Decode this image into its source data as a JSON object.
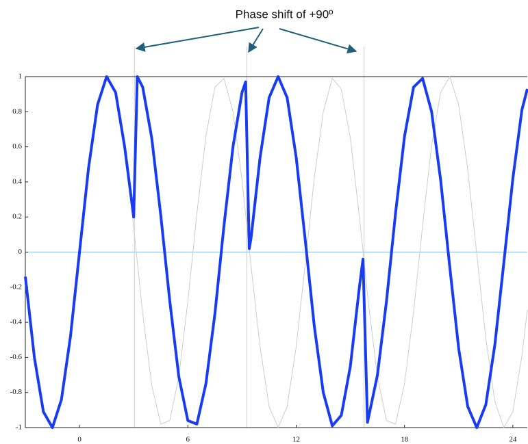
{
  "chart_data": {
    "type": "line",
    "annotation": "Phase shift of +90º",
    "xlim": [
      -3,
      24.8
    ],
    "ylim": [
      -1,
      1
    ],
    "xticks": [
      0,
      6,
      12,
      18,
      24
    ],
    "yticks": [
      -1,
      -0.8,
      -0.6,
      -0.4,
      -0.2,
      0,
      0.2,
      0.4,
      0.6,
      0.8,
      1
    ],
    "phase_shifts": [
      3.04,
      9.27,
      15.76
    ],
    "series": [
      {
        "color": "#cccccc",
        "x": [
          -3,
          -2.5,
          -2,
          -1.5,
          -1,
          -0.5,
          0,
          0.5,
          1,
          1.5,
          2,
          2.5,
          3,
          3.5,
          4,
          4.5,
          5,
          5.5,
          6,
          6.5,
          7,
          7.5,
          8,
          8.5,
          9,
          9.5,
          10,
          10.5,
          11,
          11.5,
          12,
          12.5,
          13,
          13.5,
          14,
          14.5,
          15,
          15.5,
          16,
          16.5,
          17,
          17.5,
          18,
          18.5,
          19,
          19.5,
          20,
          20.5,
          21,
          21.5,
          22,
          22.5,
          23,
          23.5,
          24,
          24.5,
          24.8
        ],
        "values": [
          -0.14,
          -0.6,
          -0.91,
          -1,
          -0.84,
          -0.48,
          0,
          0.48,
          0.84,
          1,
          0.91,
          0.6,
          0.14,
          -0.35,
          -0.76,
          -0.98,
          -0.96,
          -0.71,
          -0.28,
          0.22,
          0.66,
          0.94,
          0.99,
          0.8,
          0.41,
          -0.08,
          -0.54,
          -0.88,
          -1,
          -0.88,
          -0.54,
          -0.07,
          0.42,
          0.8,
          0.99,
          0.93,
          0.65,
          0.2,
          -0.29,
          -0.71,
          -0.96,
          -0.98,
          -0.75,
          -0.34,
          0.15,
          0.61,
          0.91,
          1,
          0.84,
          0.47,
          -0.01,
          -0.49,
          -0.85,
          -1,
          -0.91,
          -0.59,
          -0.33
        ]
      },
      {
        "color": "#1a3cf0",
        "x": [
          -3,
          -2.5,
          -2,
          -1.5,
          -1,
          -0.5,
          0,
          0.5,
          1,
          1.5,
          2,
          2.5,
          3,
          3.2,
          3.5,
          4,
          4.5,
          5,
          5.5,
          6,
          6.5,
          7,
          7.5,
          8,
          8.5,
          9,
          9.2,
          9.4,
          9.5,
          10,
          10.5,
          11,
          11.5,
          12,
          12.5,
          13,
          13.5,
          14,
          14.5,
          15,
          15.5,
          15.7,
          15.95,
          16.5,
          17,
          17.5,
          18,
          18.5,
          19,
          19.5,
          20,
          20.5,
          21,
          21.5,
          22,
          22.5,
          23,
          23.5,
          24,
          24.5,
          24.8
        ],
        "values": [
          -0.14,
          -0.6,
          -0.91,
          -1,
          -0.84,
          -0.48,
          0,
          0.48,
          0.84,
          1,
          0.91,
          0.6,
          0.2,
          1,
          0.94,
          0.65,
          0.21,
          -0.28,
          -0.71,
          -0.96,
          -0.98,
          -0.75,
          -0.35,
          0.15,
          0.6,
          0.91,
          0.97,
          0.02,
          0.08,
          0.54,
          0.88,
          1,
          0.88,
          0.54,
          0.07,
          -0.42,
          -0.8,
          -0.99,
          -0.93,
          -0.65,
          -0.2,
          -0.04,
          -0.97,
          -0.7,
          -0.28,
          0.22,
          0.66,
          0.94,
          0.99,
          0.8,
          0.41,
          -0.08,
          -0.55,
          -0.88,
          -1,
          -0.87,
          -0.53,
          -0.06,
          0.42,
          0.81,
          0.93
        ]
      }
    ]
  }
}
